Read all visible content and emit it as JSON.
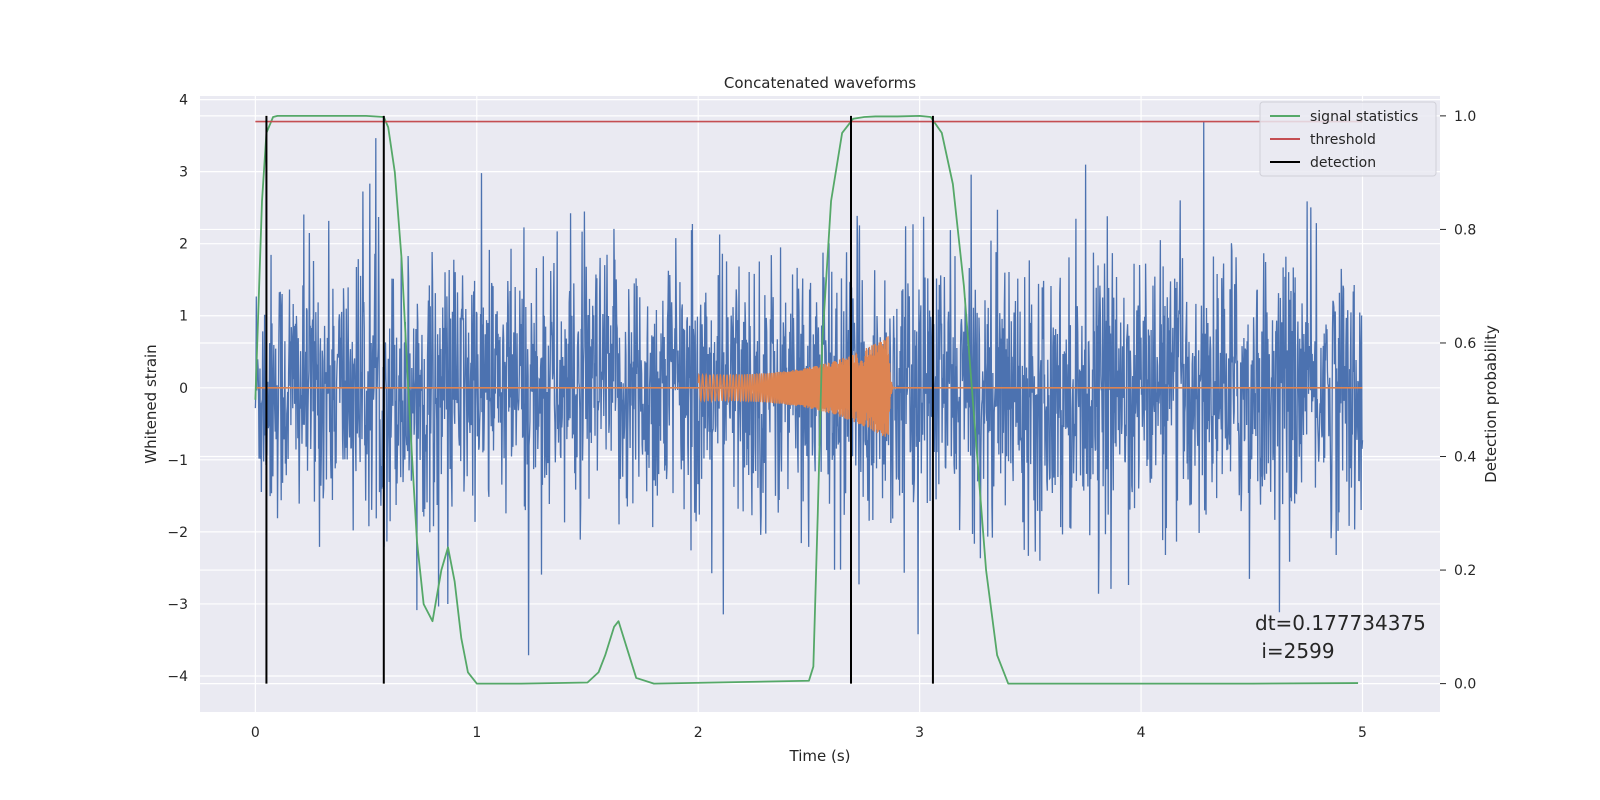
{
  "chart_data": {
    "type": "line",
    "title": "Concatenated waveforms",
    "xlabel": "Time (s)",
    "ylabel_left": "Whitened strain",
    "ylabel_right": "Detection probability",
    "xlim": [
      -0.25,
      5.35
    ],
    "ylim_left": [
      -4.5,
      4.05
    ],
    "ylim_right": [
      -0.05,
      1.035
    ],
    "xticks": [
      0,
      1,
      2,
      3,
      4,
      5
    ],
    "xtick_labels": [
      "0",
      "1",
      "2",
      "3",
      "4",
      "5"
    ],
    "yticks_left": [
      4,
      3,
      2,
      1,
      0,
      -1,
      -2,
      -3,
      -4
    ],
    "ytick_labels_left": [
      "4",
      "3",
      "2",
      "1",
      "0",
      "−1",
      "−2",
      "−3",
      "−4"
    ],
    "yticks_right": [
      1.0,
      0.8,
      0.6,
      0.4,
      0.2,
      0.0
    ],
    "ytick_labels_right": [
      "1.0",
      "0.8",
      "0.6",
      "0.4",
      "0.2",
      "0.0"
    ],
    "grid": true,
    "legend_position": "top-right",
    "colors": {
      "strain": "#4c72b0",
      "chirp": "#dd8452",
      "signal_statistics": "#55a868",
      "threshold": "#c44e52",
      "detection": "#000000",
      "plot_background": "#eaeaf2",
      "grid": "#ffffff"
    },
    "series": [
      {
        "name": "",
        "axis": "left",
        "kind": "noise",
        "x_range": [
          0,
          5
        ],
        "typical_amplitude": 1.3,
        "peak_range": [
          -4.1,
          3.7
        ]
      },
      {
        "name": "",
        "axis": "left",
        "kind": "chirp",
        "x_range": [
          2.0,
          2.88
        ],
        "amplitude_start": 0.18,
        "amplitude_peak": 0.72,
        "peak_time": 2.86
      },
      {
        "name": "signal statistics",
        "axis": "right",
        "x": [
          0,
          0.03,
          0.05,
          0.08,
          0.1,
          0.15,
          0.5,
          0.58,
          0.6,
          0.63,
          0.66,
          0.7,
          0.73,
          0.76,
          0.8,
          0.84,
          0.87,
          0.9,
          0.93,
          0.96,
          1.0,
          1.2,
          1.5,
          1.55,
          1.58,
          1.62,
          1.64,
          1.68,
          1.72,
          1.8,
          2.5,
          2.52,
          2.54,
          2.56,
          2.6,
          2.65,
          2.7,
          2.75,
          2.8,
          2.9,
          3.0,
          3.05,
          3.1,
          3.15,
          3.2,
          3.25,
          3.3,
          3.35,
          3.4,
          4.5,
          4.98
        ],
        "values": [
          0.5,
          0.85,
          0.97,
          0.998,
          1.0,
          1.0,
          1.0,
          0.998,
          0.98,
          0.9,
          0.75,
          0.45,
          0.25,
          0.14,
          0.11,
          0.2,
          0.24,
          0.18,
          0.08,
          0.02,
          0.0,
          0.0,
          0.002,
          0.02,
          0.05,
          0.1,
          0.11,
          0.06,
          0.01,
          0.0,
          0.005,
          0.03,
          0.3,
          0.6,
          0.85,
          0.97,
          0.995,
          0.998,
          0.999,
          0.999,
          1.0,
          0.998,
          0.97,
          0.88,
          0.7,
          0.45,
          0.2,
          0.05,
          0.0,
          0.0,
          0.001
        ]
      },
      {
        "name": "threshold",
        "axis": "right",
        "x": [
          0,
          5
        ],
        "values": [
          0.99,
          0.99
        ]
      },
      {
        "name": "detection",
        "axis": "right",
        "kind": "vlines",
        "x": [
          0.05,
          0.58,
          2.69,
          3.06
        ],
        "ymin": 0.0,
        "ymax": 1.0
      }
    ],
    "annotation": {
      "line1": "dt=0.177734375",
      "line2": " i=2599",
      "x": 4.5,
      "y_right": 0.1
    }
  }
}
